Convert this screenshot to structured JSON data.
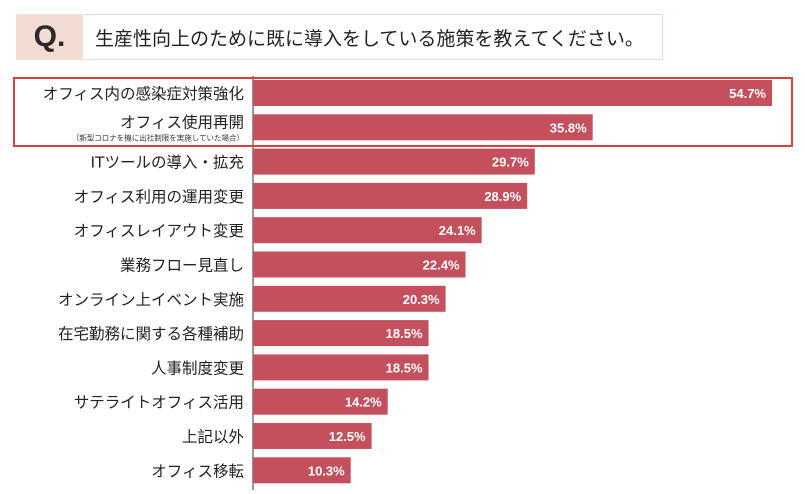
{
  "question": {
    "badge": "Q.",
    "text": "生産性向上のために既に導入をしている施策を教えてください。"
  },
  "colors": {
    "bar": "#c4505e",
    "bar_label": "#ffffff",
    "highlight": "#d8403a",
    "badge_bg": "#f2dcd3"
  },
  "chart_data": {
    "type": "bar",
    "orientation": "horizontal",
    "title": "",
    "xlabel": "",
    "ylabel": "",
    "xlim": [
      0,
      60
    ],
    "grid": false,
    "legend": "none",
    "categories": [
      "オフィス内の感染症対策強化",
      "オフィス使用再開",
      "ITツールの導入・拡充",
      "オフィス利用の運用変更",
      "オフィスレイアウト変更",
      "業務フロー見直し",
      "オンライン上イベント実施",
      "在宅勤務に関する各種補助",
      "人事制度変更",
      "サテライトオフィス活用",
      "上記以外",
      "オフィス移転"
    ],
    "notes": [
      "",
      "（新型コロナを機に出社制限を実施していた場合）",
      "",
      "",
      "",
      "",
      "",
      "",
      "",
      "",
      "",
      ""
    ],
    "values": [
      54.7,
      35.8,
      29.7,
      28.9,
      24.1,
      22.4,
      20.3,
      18.5,
      18.5,
      14.2,
      12.5,
      10.3
    ],
    "value_labels": [
      "54.7%",
      "35.8%",
      "29.7%",
      "28.9%",
      "24.1%",
      "22.4%",
      "20.3%",
      "18.5%",
      "18.5%",
      "14.2%",
      "12.5%",
      "10.3%"
    ],
    "highlighted": [
      0,
      1
    ]
  }
}
